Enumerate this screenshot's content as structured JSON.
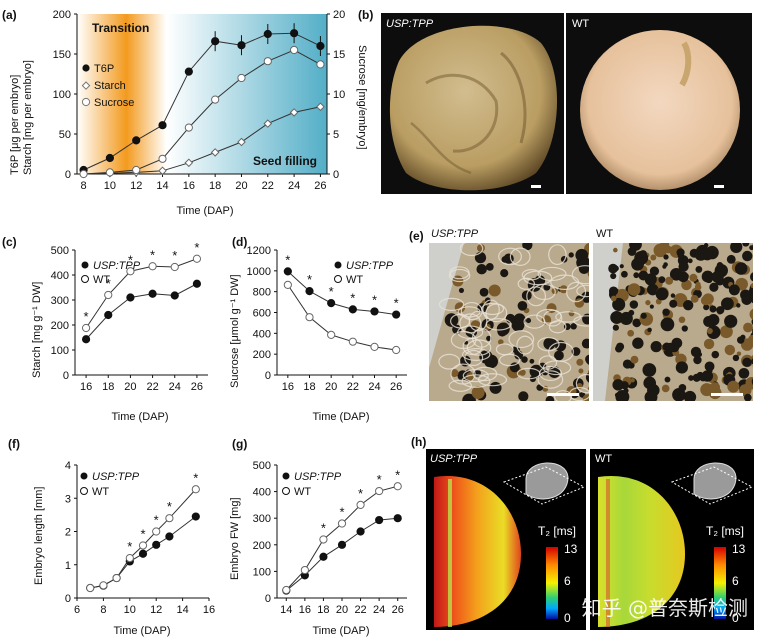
{
  "panels": {
    "a": {
      "label": "(a)",
      "ylabel_left": "T6P [μg per embryo]",
      "ylabel_left2": "Starch [mg per embryo]",
      "ylabel_right": "Sucrose [mg/embryo]",
      "xlabel": "Time (DAP)",
      "phase1": "Transition",
      "phase2": "Seed filling",
      "legend": [
        "T6P",
        "Starch",
        "Sucrose"
      ]
    },
    "b": {
      "label": "(b)",
      "left": "USP:TPP",
      "right": "WT"
    },
    "c": {
      "label": "(c)",
      "ylabel": "Starch [mg g⁻¹ DW]",
      "xlabel": "Time (DAP)",
      "legend": [
        "USP:TPP",
        "WT"
      ]
    },
    "d": {
      "label": "(d)",
      "ylabel": "Sucrose [μmol g⁻¹ DW]",
      "xlabel": "Time (DAP)",
      "legend": [
        "USP:TPP",
        "WT"
      ]
    },
    "e": {
      "label": "(e)",
      "left": "USP:TPP",
      "right": "WT"
    },
    "f": {
      "label": "(f)",
      "ylabel": "Embryo length [mm]",
      "xlabel": "Time (DAP)",
      "legend": [
        "USP:TPP",
        "WT"
      ]
    },
    "g": {
      "label": "(g)",
      "ylabel": "Embryo FW [mg]",
      "xlabel": "Time (DAP)",
      "legend": [
        "USP:TPP",
        "WT"
      ]
    },
    "h": {
      "label": "(h)",
      "left": "USP:TPP",
      "right": "WT",
      "scale_title": "T₂ [ms]",
      "scale_ticks": [
        "13",
        "6",
        "0"
      ]
    }
  },
  "watermark": "知乎 @普奈斯检测",
  "chart_data": [
    {
      "id": "a",
      "type": "line",
      "x": [
        8,
        10,
        12,
        14,
        16,
        18,
        20,
        22,
        24,
        26
      ],
      "xlim": [
        7.5,
        26.5
      ],
      "ylim": [
        0,
        200
      ],
      "y2lim": [
        0,
        20
      ],
      "yticks": [
        0,
        50,
        100,
        150,
        200
      ],
      "y2ticks": [
        0,
        5,
        10,
        15,
        20
      ],
      "series": [
        {
          "name": "T6P",
          "axis": "left",
          "marker": "filled-circle",
          "values": [
            5,
            20,
            42,
            61,
            128,
            166,
            161,
            175,
            176,
            160
          ]
        },
        {
          "name": "Starch",
          "axis": "left",
          "marker": "open-diamond",
          "values": [
            0,
            1,
            2,
            4,
            14,
            27,
            40,
            63,
            77,
            84
          ]
        },
        {
          "name": "Sucrose",
          "axis": "right",
          "marker": "open-circle",
          "values": [
            0,
            0.2,
            0.5,
            1.9,
            5.8,
            9.3,
            12.0,
            14.1,
            15.5,
            13.7
          ]
        }
      ]
    },
    {
      "id": "c",
      "type": "line",
      "x": [
        16,
        18,
        20,
        22,
        24,
        26
      ],
      "xlim": [
        15,
        27
      ],
      "ylim": [
        0,
        500
      ],
      "yticks": [
        0,
        100,
        200,
        300,
        400,
        500
      ],
      "series": [
        {
          "name": "USP:TPP",
          "marker": "filled-circle",
          "values": [
            143,
            240,
            310,
            325,
            318,
            365
          ]
        },
        {
          "name": "WT",
          "marker": "open-circle",
          "values": [
            188,
            320,
            415,
            435,
            432,
            465
          ]
        }
      ],
      "significance": [
        true,
        true,
        true,
        true,
        true,
        true
      ]
    },
    {
      "id": "d",
      "type": "line",
      "x": [
        16,
        18,
        20,
        22,
        24,
        26
      ],
      "xlim": [
        15,
        27
      ],
      "ylim": [
        0,
        1200
      ],
      "yticks": [
        0,
        200,
        400,
        600,
        800,
        1000,
        1200
      ],
      "series": [
        {
          "name": "USP:TPP",
          "marker": "filled-circle",
          "values": [
            995,
            805,
            690,
            630,
            610,
            580
          ]
        },
        {
          "name": "WT",
          "marker": "open-circle",
          "values": [
            865,
            555,
            385,
            320,
            270,
            240
          ]
        }
      ],
      "significance": [
        true,
        true,
        true,
        true,
        true,
        true
      ]
    },
    {
      "id": "f",
      "type": "line",
      "x": [
        7,
        8,
        9,
        10,
        11,
        12,
        13,
        15
      ],
      "xlim": [
        6,
        16
      ],
      "ylim": [
        0,
        4
      ],
      "xticks": [
        6,
        8,
        10,
        12,
        14,
        16
      ],
      "yticks": [
        0,
        1,
        2,
        3,
        4
      ],
      "series": [
        {
          "name": "USP:TPP",
          "marker": "filled-circle",
          "values": [
            0.3,
            0.37,
            0.6,
            1.1,
            1.33,
            1.6,
            1.85,
            2.45
          ]
        },
        {
          "name": "WT",
          "marker": "open-circle",
          "values": [
            0.3,
            0.38,
            0.6,
            1.2,
            1.58,
            2.0,
            2.4,
            3.27
          ]
        }
      ],
      "significance": [
        false,
        false,
        false,
        true,
        true,
        true,
        true,
        true
      ]
    },
    {
      "id": "g",
      "type": "line",
      "x": [
        14,
        16,
        18,
        20,
        22,
        24,
        26
      ],
      "xlim": [
        13,
        27
      ],
      "ylim": [
        0,
        500
      ],
      "xticks": [
        14,
        16,
        18,
        20,
        22,
        24,
        26
      ],
      "yticks": [
        0,
        100,
        200,
        300,
        400,
        500
      ],
      "series": [
        {
          "name": "USP:TPP",
          "marker": "filled-circle",
          "values": [
            28,
            85,
            155,
            200,
            250,
            293,
            300
          ]
        },
        {
          "name": "WT",
          "marker": "open-circle",
          "values": [
            30,
            105,
            220,
            280,
            350,
            402,
            420
          ]
        }
      ],
      "significance": [
        false,
        false,
        true,
        true,
        true,
        true,
        true
      ]
    }
  ]
}
